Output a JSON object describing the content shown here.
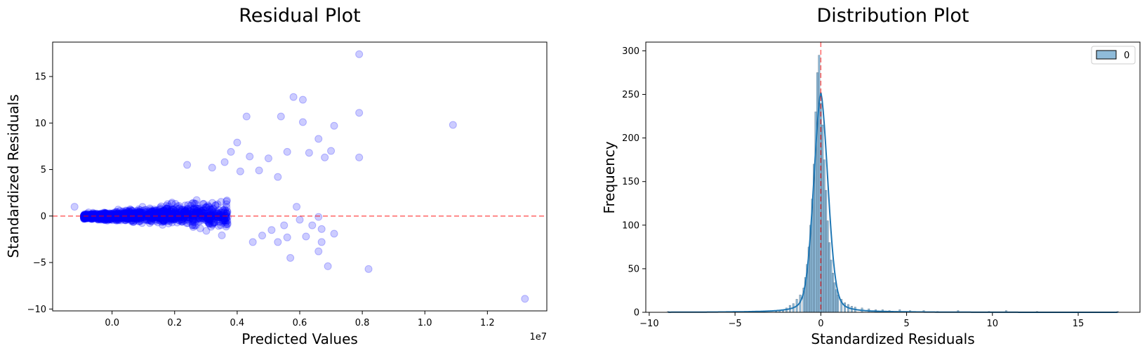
{
  "chart_data": [
    {
      "type": "scatter",
      "title": "Residual Plot",
      "xlabel": "Predicted Values",
      "ylabel": "Standardized Residuals",
      "x_offset_text": "1e7",
      "xlim": [
        -0.19,
        1.39
      ],
      "ylim": [
        -10.2,
        18.7
      ],
      "xticks": [
        0.0,
        0.2,
        0.4,
        0.6,
        0.8,
        1.0,
        1.2
      ],
      "xtick_labels": [
        "0.0",
        "0.2",
        "0.4",
        "0.6",
        "0.8",
        "1.0",
        "1.2"
      ],
      "yticks": [
        -10,
        -5,
        0,
        5,
        10,
        15
      ],
      "ytick_labels": [
        "−10",
        "−5",
        "0",
        "5",
        "10",
        "15"
      ],
      "hline": {
        "y": 0,
        "color": "#ff0000",
        "style": "dashed"
      },
      "marker_color": "#0000ff",
      "marker_alpha": 0.2,
      "notable_points": [
        [
          0.79,
          17.4
        ],
        [
          0.58,
          12.8
        ],
        [
          0.61,
          12.5
        ],
        [
          0.79,
          11.1
        ],
        [
          1.09,
          9.8
        ],
        [
          0.43,
          10.7
        ],
        [
          0.54,
          10.7
        ],
        [
          0.61,
          10.1
        ],
        [
          0.71,
          9.7
        ],
        [
          0.66,
          8.3
        ],
        [
          0.4,
          7.9
        ],
        [
          0.38,
          6.9
        ],
        [
          0.44,
          6.4
        ],
        [
          0.5,
          6.2
        ],
        [
          0.56,
          6.9
        ],
        [
          0.63,
          6.8
        ],
        [
          0.68,
          6.3
        ],
        [
          0.7,
          7.0
        ],
        [
          0.79,
          6.3
        ],
        [
          0.36,
          5.8
        ],
        [
          0.24,
          5.5
        ],
        [
          0.32,
          5.2
        ],
        [
          0.47,
          4.9
        ],
        [
          0.53,
          4.2
        ],
        [
          0.41,
          4.8
        ],
        [
          0.59,
          1.0
        ],
        [
          0.66,
          -0.1
        ],
        [
          0.67,
          -1.4
        ],
        [
          0.71,
          -1.9
        ],
        [
          0.62,
          -2.2
        ],
        [
          0.67,
          -2.8
        ],
        [
          0.66,
          -3.8
        ],
        [
          0.57,
          -4.5
        ],
        [
          0.69,
          -5.4
        ],
        [
          0.82,
          -5.7
        ],
        [
          1.32,
          -8.9
        ],
        [
          -0.12,
          1.0
        ],
        [
          0.45,
          -2.8
        ],
        [
          0.53,
          -2.8
        ],
        [
          0.56,
          -2.3
        ],
        [
          0.48,
          -2.1
        ],
        [
          0.51,
          -1.5
        ],
        [
          0.64,
          -1.0
        ],
        [
          0.55,
          -1.0
        ],
        [
          0.6,
          -0.4
        ]
      ]
    },
    {
      "type": "histogram",
      "title": "Distribution Plot",
      "xlabel": "Standardized Residuals",
      "ylabel": "Frequency",
      "xlim": [
        -10.2,
        18.6
      ],
      "ylim": [
        0,
        310
      ],
      "xticks": [
        -10,
        -5,
        0,
        5,
        10,
        15
      ],
      "xtick_labels": [
        "−10",
        "−5",
        "0",
        "5",
        "10",
        "15"
      ],
      "yticks": [
        0,
        50,
        100,
        150,
        200,
        250,
        300
      ],
      "ytick_labels": [
        "0",
        "50",
        "100",
        "150",
        "200",
        "250",
        "300"
      ],
      "vline": {
        "x": 0,
        "color": "#ff0000",
        "style": "dashed"
      },
      "bar_color": "#1f77b4",
      "kde_color": "#1f77b4",
      "legend": {
        "position": "top-right",
        "entries": [
          "0"
        ]
      },
      "bins": [
        [
          -2.6,
          1
        ],
        [
          -2.4,
          2
        ],
        [
          -2.2,
          3
        ],
        [
          -2.0,
          5
        ],
        [
          -1.8,
          8
        ],
        [
          -1.6,
          10
        ],
        [
          -1.4,
          15
        ],
        [
          -1.2,
          20
        ],
        [
          -1.0,
          28
        ],
        [
          -0.9,
          40
        ],
        [
          -0.8,
          55
        ],
        [
          -0.7,
          75
        ],
        [
          -0.6,
          100
        ],
        [
          -0.5,
          130
        ],
        [
          -0.4,
          170
        ],
        [
          -0.3,
          230
        ],
        [
          -0.2,
          275
        ],
        [
          -0.1,
          295
        ],
        [
          0.0,
          240
        ],
        [
          0.1,
          215
        ],
        [
          0.2,
          175
        ],
        [
          0.3,
          140
        ],
        [
          0.4,
          105
        ],
        [
          0.5,
          80
        ],
        [
          0.6,
          60
        ],
        [
          0.7,
          45
        ],
        [
          0.8,
          34
        ],
        [
          0.9,
          26
        ],
        [
          1.0,
          20
        ],
        [
          1.2,
          15
        ],
        [
          1.4,
          11
        ],
        [
          1.6,
          9
        ],
        [
          1.8,
          7
        ],
        [
          2.0,
          6
        ],
        [
          2.4,
          5
        ],
        [
          2.8,
          4
        ],
        [
          3.2,
          3
        ],
        [
          3.6,
          3
        ],
        [
          4.0,
          2
        ],
        [
          4.6,
          3
        ],
        [
          5.2,
          2
        ],
        [
          6.0,
          2
        ],
        [
          6.8,
          1
        ],
        [
          8.0,
          2
        ],
        [
          9.8,
          1
        ],
        [
          10.8,
          2
        ],
        [
          12.6,
          1
        ],
        [
          17.3,
          1
        ],
        [
          -3.4,
          1
        ],
        [
          -4.4,
          1
        ],
        [
          -5.6,
          1
        ],
        [
          -8.9,
          1
        ]
      ]
    }
  ]
}
